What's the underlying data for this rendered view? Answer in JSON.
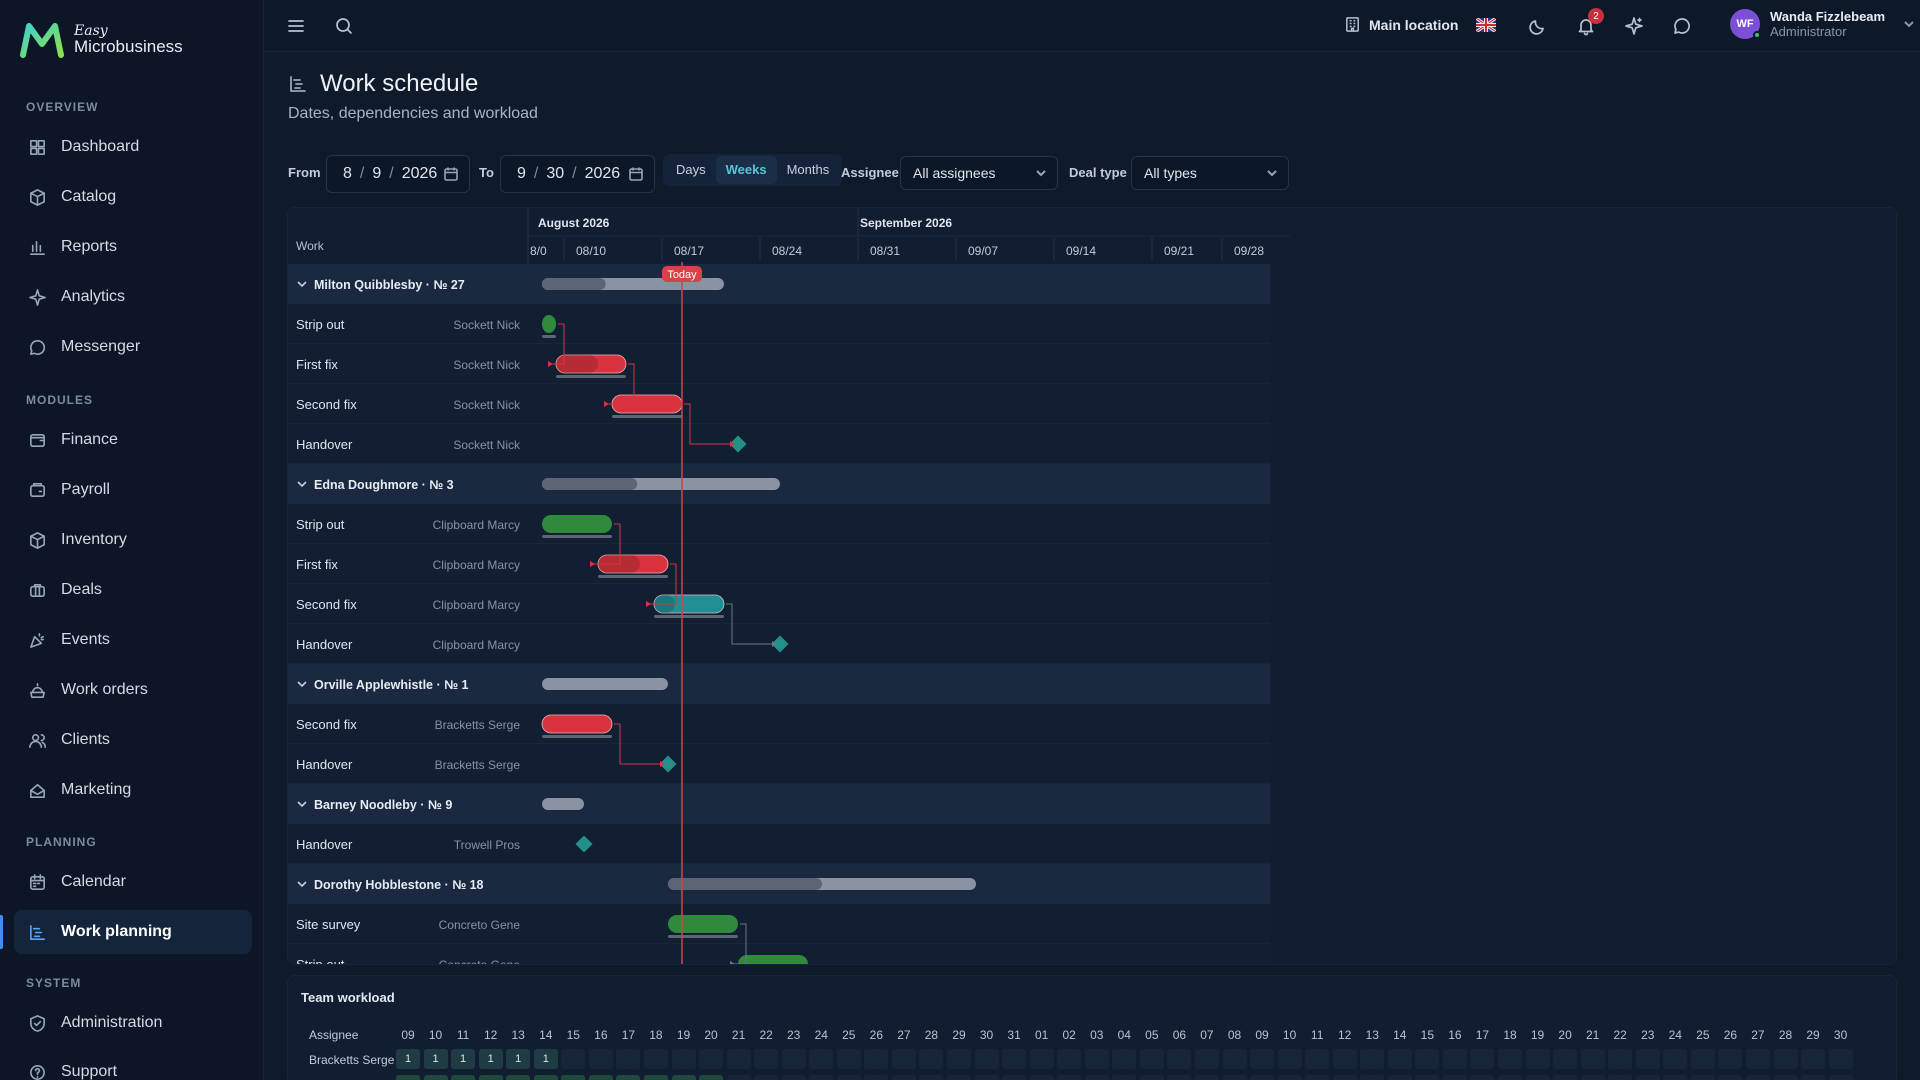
{
  "app": {
    "logo_line1": "Easy",
    "logo_line2": "Microbusiness"
  },
  "sidebar": {
    "groups": [
      {
        "label": "OVERVIEW",
        "items": [
          {
            "label": "Dashboard",
            "icon": "dashboard-icon"
          },
          {
            "label": "Catalog",
            "icon": "catalog-icon"
          },
          {
            "label": "Reports",
            "icon": "reports-icon"
          },
          {
            "label": "Analytics",
            "icon": "analytics-icon"
          },
          {
            "label": "Messenger",
            "icon": "messenger-icon"
          }
        ]
      },
      {
        "label": "MODULES",
        "items": [
          {
            "label": "Finance",
            "icon": "finance-icon"
          },
          {
            "label": "Payroll",
            "icon": "payroll-icon"
          },
          {
            "label": "Inventory",
            "icon": "inventory-icon"
          },
          {
            "label": "Deals",
            "icon": "deals-icon"
          },
          {
            "label": "Events",
            "icon": "events-icon"
          },
          {
            "label": "Work orders",
            "icon": "work-orders-icon"
          },
          {
            "label": "Clients",
            "icon": "clients-icon"
          },
          {
            "label": "Marketing",
            "icon": "marketing-icon"
          }
        ]
      },
      {
        "label": "PLANNING",
        "items": [
          {
            "label": "Calendar",
            "icon": "calendar-icon"
          },
          {
            "label": "Work planning",
            "icon": "work-planning-icon",
            "active": true
          }
        ]
      },
      {
        "label": "SYSTEM",
        "items": [
          {
            "label": "Administration",
            "icon": "administration-icon"
          },
          {
            "label": "Support",
            "icon": "support-icon"
          }
        ]
      }
    ]
  },
  "topbar": {
    "location": "Main location",
    "notifications_count": "2",
    "user_initials": "WF",
    "user_name": "Wanda Fizzlebeam",
    "user_role": "Administrator"
  },
  "page": {
    "title": "Work schedule",
    "subtitle": "Dates, dependencies and workload"
  },
  "filters": {
    "from_label": "From",
    "from_month": "8",
    "from_day": "9",
    "from_year": "2026",
    "to_label": "To",
    "to_month": "9",
    "to_day": "30",
    "to_year": "2026",
    "date_sep": "/",
    "view_modes": [
      "Days",
      "Weeks",
      "Months"
    ],
    "active_view": "Weeks",
    "assignee_label": "Assignee",
    "assignee_value": "All assignees",
    "deal_type_label": "Deal type",
    "deal_type_value": "All types"
  },
  "gantt": {
    "work_header": "Work",
    "months": [
      "August 2026",
      "September 2026"
    ],
    "week_labels": [
      "8/0",
      "08/10",
      "08/17",
      "08/24",
      "08/31",
      "09/07",
      "09/14",
      "09/21",
      "09/28"
    ],
    "today_label": "Today",
    "today": "2026-08-19",
    "rows": [
      {
        "type": "group",
        "label": "Milton Quibblesby · № 27",
        "start": "2026-08-09",
        "end": "2026-08-22",
        "progress": 0.35
      },
      {
        "type": "task",
        "label": "Strip out",
        "assignee": "Sockett Nick",
        "kind": "bar",
        "status": "done",
        "start": "2026-08-09",
        "end": "2026-08-10"
      },
      {
        "type": "task",
        "label": "First fix",
        "assignee": "Sockett Nick",
        "kind": "bar",
        "status": "late",
        "start": "2026-08-10",
        "end": "2026-08-15",
        "progress": 0.6
      },
      {
        "type": "task",
        "label": "Second fix",
        "assignee": "Sockett Nick",
        "kind": "bar",
        "status": "late",
        "start": "2026-08-14",
        "end": "2026-08-19"
      },
      {
        "type": "task",
        "label": "Handover",
        "assignee": "Sockett Nick",
        "kind": "milestone",
        "date": "2026-08-23"
      },
      {
        "type": "group",
        "label": "Edna Doughmore · № 3",
        "start": "2026-08-09",
        "end": "2026-08-26",
        "progress": 0.4
      },
      {
        "type": "task",
        "label": "Strip out",
        "assignee": "Clipboard Marcy",
        "kind": "bar",
        "status": "done",
        "start": "2026-08-09",
        "end": "2026-08-14"
      },
      {
        "type": "task",
        "label": "First fix",
        "assignee": "Clipboard Marcy",
        "kind": "bar",
        "status": "late",
        "start": "2026-08-13",
        "end": "2026-08-18",
        "progress": 0.6
      },
      {
        "type": "task",
        "label": "Second fix",
        "assignee": "Clipboard Marcy",
        "kind": "bar",
        "status": "active",
        "start": "2026-08-17",
        "end": "2026-08-22",
        "progress": 0.3
      },
      {
        "type": "task",
        "label": "Handover",
        "assignee": "Clipboard Marcy",
        "kind": "milestone",
        "date": "2026-08-26"
      },
      {
        "type": "group",
        "label": "Orville Applewhistle · № 1",
        "start": "2026-08-09",
        "end": "2026-08-18",
        "progress": 0
      },
      {
        "type": "task",
        "label": "Second fix",
        "assignee": "Bracketts Serge",
        "kind": "bar",
        "status": "late",
        "start": "2026-08-09",
        "end": "2026-08-14"
      },
      {
        "type": "task",
        "label": "Handover",
        "assignee": "Bracketts Serge",
        "kind": "milestone",
        "date": "2026-08-18"
      },
      {
        "type": "group",
        "label": "Barney Noodleby · № 9",
        "start": "2026-08-09",
        "end": "2026-08-12",
        "progress": 0
      },
      {
        "type": "task",
        "label": "Handover",
        "assignee": "Trowell Pros",
        "kind": "milestone",
        "date": "2026-08-12"
      },
      {
        "type": "group",
        "label": "Dorothy Hobblestone · № 18",
        "start": "2026-08-18",
        "end": "2026-09-09",
        "progress": 0.5
      },
      {
        "type": "task",
        "label": "Site survey",
        "assignee": "Concreto Gene",
        "kind": "bar",
        "status": "done",
        "start": "2026-08-18",
        "end": "2026-08-23"
      },
      {
        "type": "task",
        "label": "Strip out",
        "assignee": "Concreto Gene",
        "kind": "bar",
        "status": "done",
        "start": "2026-08-23",
        "end": "2026-08-28"
      }
    ]
  },
  "colors": {
    "done": "#2f8a3c",
    "late": "#d8333f",
    "active": "#1f8f94",
    "milestone": "#23908a",
    "group_bar": "#8993a3",
    "group_progress": "#5c6574",
    "today_line": "#d94048",
    "accent": "#3b8ff0"
  },
  "workload": {
    "title": "Team workload",
    "assignee_header": "Assignee",
    "days": [
      "09",
      "10",
      "11",
      "12",
      "13",
      "14",
      "15",
      "16",
      "17",
      "18",
      "19",
      "20",
      "21",
      "22",
      "23",
      "24",
      "25",
      "26",
      "27",
      "28",
      "29",
      "30",
      "31",
      "01",
      "02",
      "03",
      "04",
      "05",
      "06",
      "07",
      "08",
      "09",
      "10",
      "11",
      "12",
      "13",
      "14",
      "15",
      "16",
      "17",
      "18",
      "19",
      "20",
      "21",
      "22",
      "23",
      "24",
      "25",
      "26",
      "27",
      "28",
      "29",
      "30"
    ],
    "rows": [
      {
        "name": "Bracketts Serge",
        "values": [
          "1",
          "1",
          "1",
          "1",
          "1",
          "1"
        ]
      }
    ]
  }
}
